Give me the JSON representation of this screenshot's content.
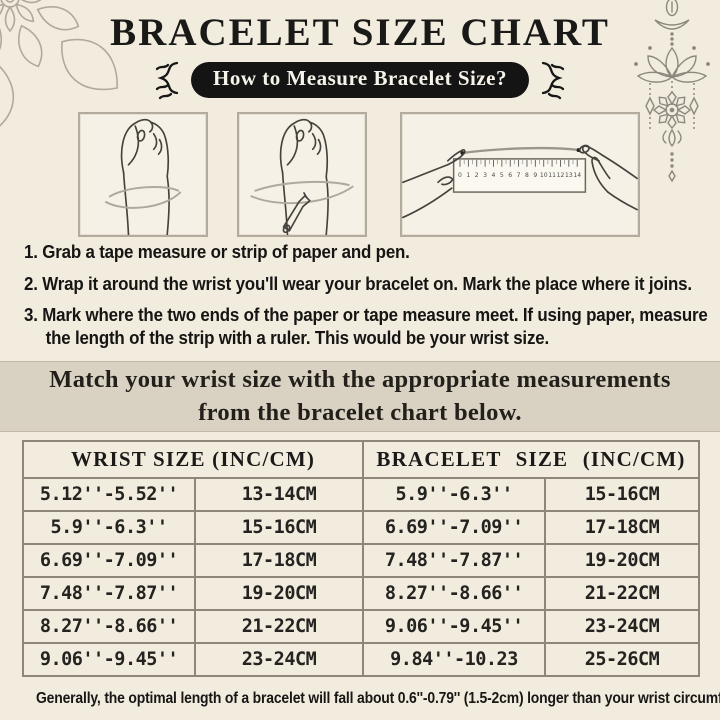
{
  "page": {
    "title": "BRACELET SIZE CHART",
    "badge": "How to Measure Bracelet Size?"
  },
  "instructions": [
    "1. Grab a tape measure or strip of paper and pen.",
    "2. Wrap it around the wrist you'll wear your bracelet on. Mark the place where it joins.",
    "3. Mark where the two ends of the paper or tape measure meet. If using paper, measure the length of the strip with a ruler. This would be your wrist size."
  ],
  "banner": "Match your wrist size with the appropriate measurements from the bracelet chart below.",
  "illustrations": {
    "ruler_numbers": [
      "0",
      "1",
      "2",
      "3",
      "4",
      "5",
      "6",
      "7",
      "8",
      "9",
      "10",
      "11",
      "12",
      "13",
      "14"
    ]
  },
  "table": {
    "header_wrist": "WRIST SIZE (INC/CM)",
    "header_bracelet": "BRACELET SIZE (INC/CM)",
    "rows": [
      [
        "5.12''-5.52''",
        "13-14CM",
        "5.9''-6.3''",
        "15-16CM"
      ],
      [
        "5.9''-6.3''",
        "15-16CM",
        "6.69''-7.09''",
        "17-18CM"
      ],
      [
        "6.69''-7.09''",
        "17-18CM",
        "7.48''-7.87''",
        "19-20CM"
      ],
      [
        "7.48''-7.87''",
        "19-20CM",
        "8.27''-8.66''",
        "21-22CM"
      ],
      [
        "8.27''-8.66''",
        "21-22CM",
        "9.06''-9.45''",
        "23-24CM"
      ],
      [
        "9.06''-9.45''",
        "23-24CM",
        "9.84''-10.23",
        "25-26CM"
      ]
    ]
  },
  "footnote": "Generally, the optimal length of a bracelet will fall about 0.6''-0.79'' (1.5-2cm) longer than your wrist circumference.",
  "colors": {
    "page-bg": "#f2ecdf",
    "panel-bg": "#f6f1e6",
    "panel-border": "#b3ac9e",
    "banner-bg": "#d9d1c2",
    "banner-border": "#c2b9a9",
    "table-line": "#8d8779",
    "ink": "#1d1c1a",
    "badge-bg": "#141414",
    "badge-text": "#f6f3ea",
    "art-gray": "#aea9a0",
    "art-dark": "#8d887e",
    "hand-line": "#45423e"
  }
}
